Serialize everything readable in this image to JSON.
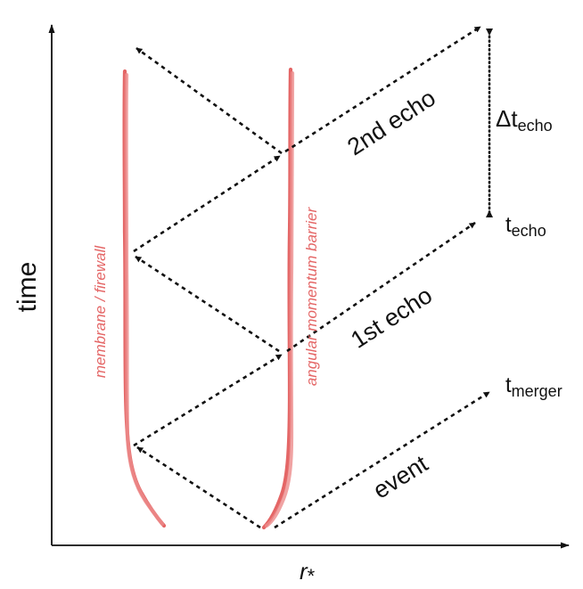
{
  "axes": {
    "y_label": "time",
    "x_label": "r",
    "x_label_subscript": "*"
  },
  "curves": {
    "inner_label": "membrane / firewall",
    "outer_label": "angular momentum barrier",
    "color": "#e46666"
  },
  "labels": {
    "event": "event",
    "first_echo": "1st echo",
    "second_echo": "2nd echo",
    "t_merger_base": "t",
    "t_merger_sub": "merger",
    "t_echo_base": "t",
    "t_echo_sub": "echo",
    "delta_symbol": "Δ",
    "delta_t_base": "t",
    "delta_t_sub": "echo"
  }
}
